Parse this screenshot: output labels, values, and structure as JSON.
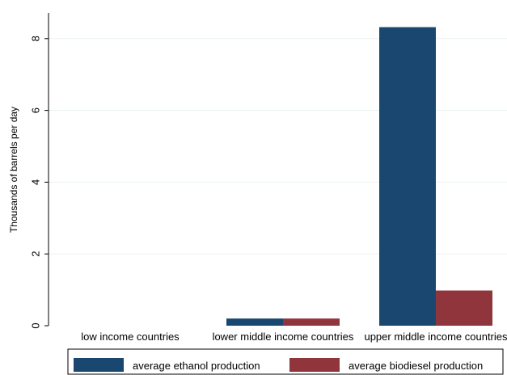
{
  "chart_data": {
    "type": "bar",
    "title": "",
    "xlabel": "",
    "ylabel": "Thousands of barrels per day",
    "categories": [
      "low income countries",
      "lower middle income countries",
      "upper middle income countries"
    ],
    "series": [
      {
        "name": "average ethanol production",
        "values": [
          0,
          0.2,
          8.32
        ],
        "color": "#1a476f"
      },
      {
        "name": "average biodiesel production",
        "values": [
          0,
          0.2,
          0.98
        ],
        "color": "#90353b"
      }
    ],
    "ylim": [
      0,
      8.7
    ],
    "yticks": [
      0,
      2,
      4,
      6,
      8
    ],
    "grid": true,
    "legend_position": "bottom"
  }
}
